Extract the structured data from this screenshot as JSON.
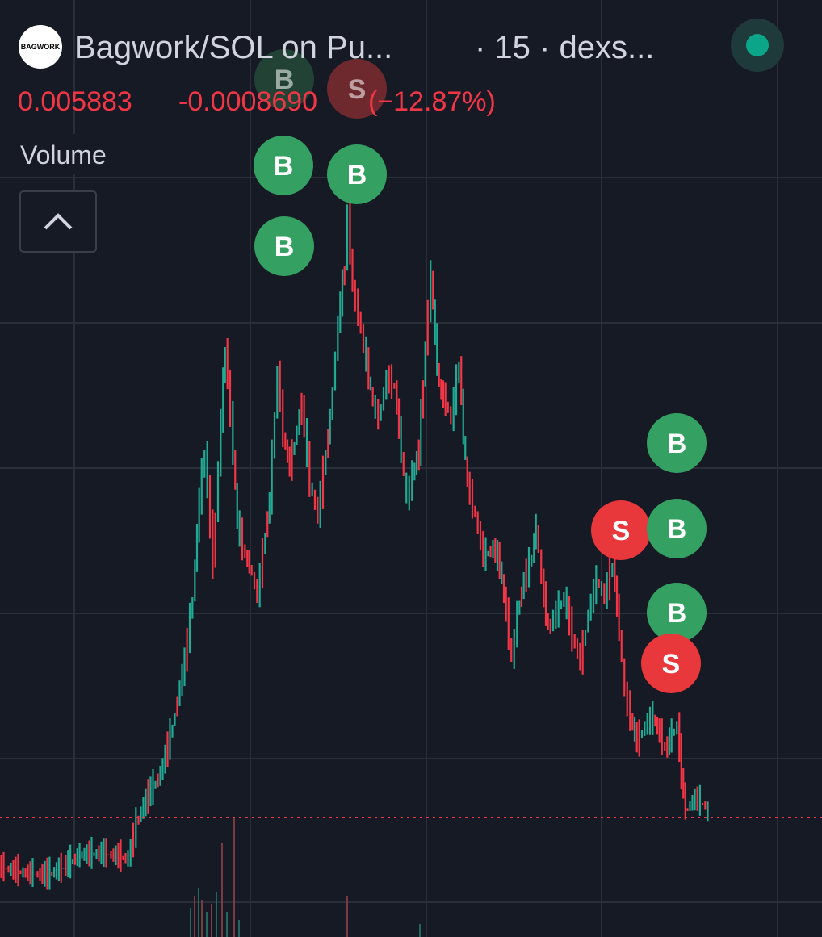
{
  "header": {
    "logo": "BAGWORK",
    "symbol": "Bagwork/SOL on Pu...",
    "meta": "· 15 · dexs..."
  },
  "quote": {
    "price": "0.005883",
    "change": "-0.0008690",
    "change_percent": "(−12.87%)"
  },
  "indicator": {
    "label": "Volume"
  },
  "markers": [
    {
      "label": "B"
    },
    {
      "label": "S"
    },
    {
      "label": "B"
    },
    {
      "label": "B"
    },
    {
      "label": "B"
    },
    {
      "label": "B"
    },
    {
      "label": "S"
    },
    {
      "label": "B"
    },
    {
      "label": "B"
    },
    {
      "label": "S"
    }
  ]
}
